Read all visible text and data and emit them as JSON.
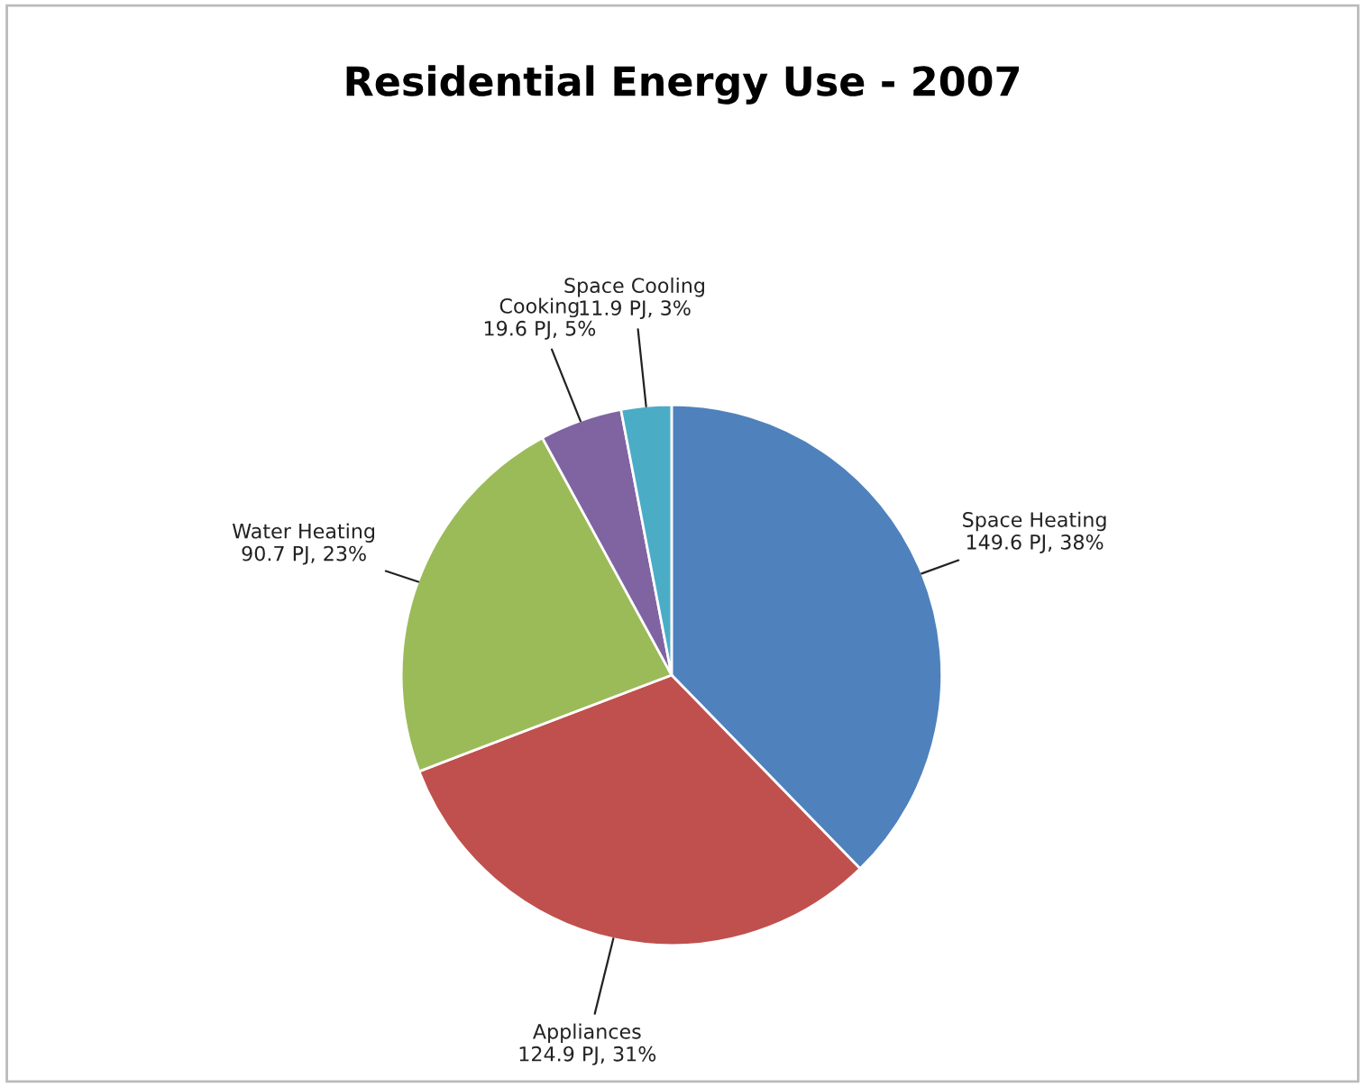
{
  "chart_data": {
    "type": "pie",
    "title": "Residential Energy Use - 2007",
    "categories": [
      "Space Heating",
      "Appliances",
      "Water Heating",
      "Cooking",
      "Space Cooling"
    ],
    "values": [
      149.6,
      124.9,
      90.7,
      19.6,
      11.9
    ],
    "value_labels": [
      "149.6 PJ, 38%",
      "124.9 PJ, 31%",
      "90.7 PJ, 23%",
      "19.6 PJ, 5%",
      "11.9 PJ, 3%"
    ],
    "colors": [
      "#4f81bd",
      "#c0504d",
      "#9bbb59",
      "#8064a2",
      "#4bacc6"
    ],
    "legend": false
  }
}
